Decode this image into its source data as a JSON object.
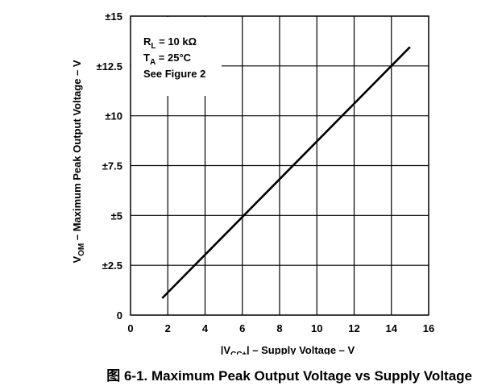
{
  "caption": "图 6-1. Maximum Peak Output Voltage vs Supply Voltage",
  "chart_data": {
    "type": "line",
    "xlabel": {
      "prefix": "|V",
      "sub": "CC±",
      "suffix": "| – Supply Voltage – V"
    },
    "ylabel": {
      "prefix": "V",
      "sub": "OM",
      "suffix": " – Maximum Peak Output Voltage – V"
    },
    "xlim": [
      0,
      16
    ],
    "ylim": [
      0,
      15
    ],
    "x_ticks": [
      0,
      2,
      4,
      6,
      8,
      10,
      12,
      14,
      16
    ],
    "x_tick_labels": [
      "0",
      "2",
      "4",
      "6",
      "8",
      "10",
      "12",
      "14",
      "16"
    ],
    "y_ticks": [
      0,
      2.5,
      5,
      7.5,
      10,
      12.5,
      15
    ],
    "y_tick_labels": [
      "0",
      "±2.5",
      "±5",
      "±7.5",
      "±10",
      "±12.5",
      "±15"
    ],
    "grid": true,
    "series": [
      {
        "x": [
          1.7,
          15
        ],
        "y": [
          0.85,
          13.45
        ]
      }
    ],
    "annotations": [
      {
        "prefix": "R",
        "sub": "L",
        "suffix": " = 10 kΩ"
      },
      {
        "prefix": "T",
        "sub": "A",
        "suffix": " = 25°C"
      },
      {
        "prefix": "See Figure 2",
        "sub": "",
        "suffix": ""
      }
    ]
  }
}
